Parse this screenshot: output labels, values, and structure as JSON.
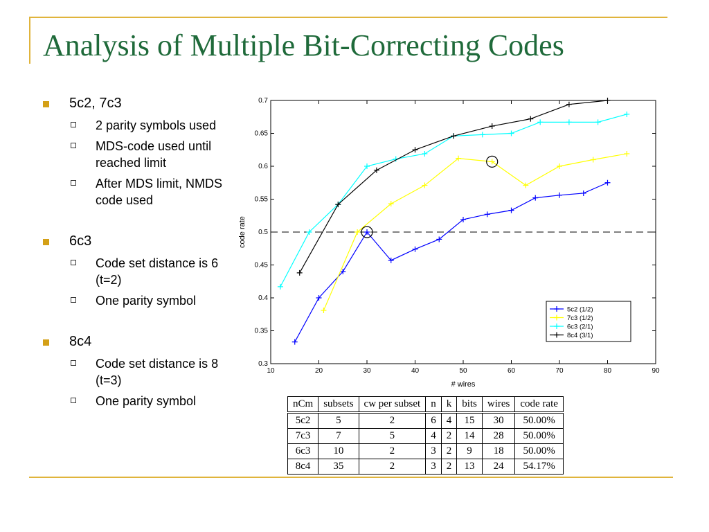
{
  "slide": {
    "title": "Analysis of Multiple Bit-Correcting Codes",
    "bullets": [
      {
        "text": "5c2, 7c3",
        "sub": [
          "2 parity symbols used",
          "MDS-code used until reached limit",
          "After MDS limit, NMDS code used"
        ]
      },
      {
        "text": "6c3",
        "sub": [
          "Code set distance is 6 (t=2)",
          "One parity symbol"
        ]
      },
      {
        "text": "8c4",
        "sub": [
          "Code set distance is 8 (t=3)",
          "One parity symbol"
        ]
      }
    ]
  },
  "chart_data": {
    "type": "line",
    "xlabel": "# wires",
    "ylabel": "code rate",
    "xlim": [
      10,
      90
    ],
    "ylim": [
      0.3,
      0.7
    ],
    "xticks": [
      10,
      20,
      30,
      40,
      50,
      60,
      70,
      80,
      90
    ],
    "yticks": [
      0.3,
      0.35,
      0.4,
      0.45,
      0.5,
      0.55,
      0.6,
      0.65,
      0.7
    ],
    "reference_line": 0.5,
    "legend_position": "bottom-right",
    "series": [
      {
        "name": "5c2 (1/2)",
        "color": "#0000ff",
        "x": [
          15,
          20,
          25,
          30,
          35,
          40,
          45,
          50,
          55,
          60,
          65,
          70,
          75,
          80
        ],
        "y": [
          0.333,
          0.4,
          0.44,
          0.5,
          0.457,
          0.474,
          0.489,
          0.519,
          0.527,
          0.533,
          0.552,
          0.556,
          0.559,
          0.575
        ]
      },
      {
        "name": "7c3 (1/2)",
        "color": "#ffff00",
        "x": [
          21,
          28,
          35,
          42,
          49,
          56,
          63,
          70,
          77,
          84
        ],
        "y": [
          0.381,
          0.5,
          0.543,
          0.571,
          0.612,
          0.607,
          0.571,
          0.6,
          0.61,
          0.619
        ]
      },
      {
        "name": "6c3 (2/1)",
        "color": "#00ffff",
        "x": [
          12,
          18,
          24,
          30,
          36,
          42,
          48,
          54,
          60,
          66,
          72,
          78,
          84
        ],
        "y": [
          0.417,
          0.5,
          0.542,
          0.6,
          0.611,
          0.619,
          0.646,
          0.648,
          0.65,
          0.667,
          0.667,
          0.667,
          0.679
        ]
      },
      {
        "name": "8c4 (3/1)",
        "color": "#000000",
        "x": [
          16,
          24,
          32,
          40,
          48,
          56,
          64,
          72,
          80
        ],
        "y": [
          0.438,
          0.542,
          0.594,
          0.625,
          0.646,
          0.661,
          0.672,
          0.694,
          0.7
        ]
      }
    ],
    "circled_points": [
      {
        "x": 30,
        "y": 0.5
      },
      {
        "x": 56,
        "y": 0.607
      }
    ]
  },
  "table": {
    "headers": [
      "nCm",
      "subsets",
      "cw per subset",
      "n",
      "k",
      "bits",
      "wires",
      "code rate"
    ],
    "rows": [
      [
        "5c2",
        "5",
        "2",
        "6",
        "4",
        "15",
        "30",
        "50.00%"
      ],
      [
        "7c3",
        "7",
        "5",
        "4",
        "2",
        "14",
        "28",
        "50.00%"
      ],
      [
        "6c3",
        "10",
        "2",
        "3",
        "2",
        "9",
        "18",
        "50.00%"
      ],
      [
        "8c4",
        "35",
        "2",
        "3",
        "2",
        "13",
        "24",
        "54.17%"
      ]
    ]
  }
}
